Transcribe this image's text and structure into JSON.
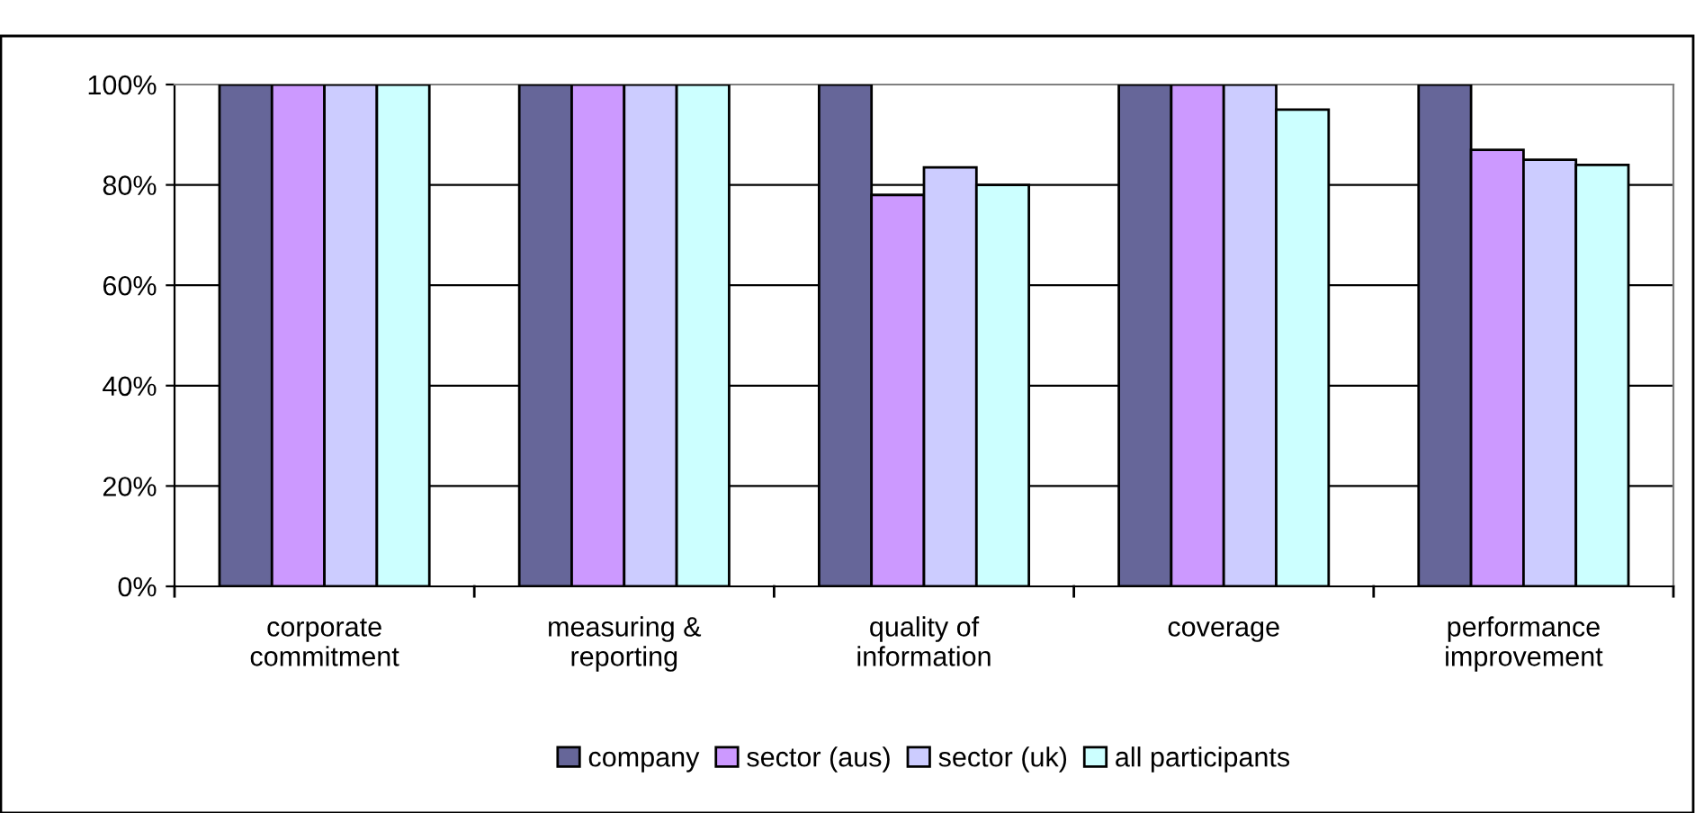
{
  "chart_data": {
    "type": "bar",
    "categories": [
      "corporate\ncommitment",
      "measuring &\nreporting",
      "quality of\ninformation",
      "coverage",
      "performance\nimprovement"
    ],
    "series": [
      {
        "name": "company",
        "color": "#666699",
        "values": [
          100,
          100,
          100,
          100,
          100
        ]
      },
      {
        "name": "sector (aus)",
        "color": "#cc99ff",
        "values": [
          100,
          100,
          78,
          100,
          87
        ]
      },
      {
        "name": "sector (uk)",
        "color": "#ccccff",
        "values": [
          100,
          100,
          83.5,
          100,
          85
        ]
      },
      {
        "name": "all participants",
        "color": "#ccffff",
        "values": [
          100,
          100,
          80,
          95,
          84
        ]
      }
    ],
    "ylim": [
      0,
      100
    ],
    "yticks": [
      {
        "value": 0,
        "label": "0%"
      },
      {
        "value": 20,
        "label": "20%"
      },
      {
        "value": 40,
        "label": "40%"
      },
      {
        "value": 60,
        "label": "60%"
      },
      {
        "value": 80,
        "label": "80%"
      },
      {
        "value": 100,
        "label": "100%"
      }
    ],
    "grid": "y",
    "legend": "bottom"
  }
}
